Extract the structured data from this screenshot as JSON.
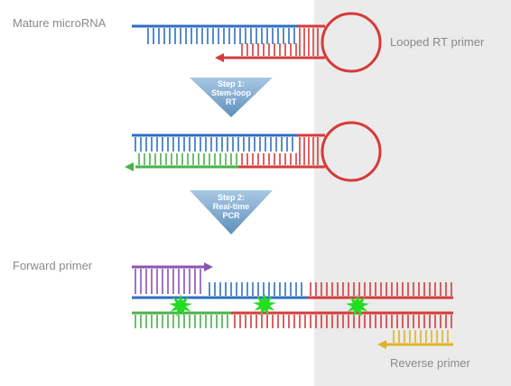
{
  "labels": {
    "mature_microrna": "Mature microRNA",
    "looped_rt_primer": "Looped RT primer",
    "forward_primer": "Forward primer",
    "reverse_primer": "Reverse primer"
  },
  "steps": [
    {
      "lines": [
        "Step 1:",
        "Stem-loop",
        "RT"
      ]
    },
    {
      "lines": [
        "Step 2:",
        "Real-time",
        "PCR"
      ]
    }
  ],
  "colors": {
    "microrna": "#2f6fc2",
    "rt_primer": "#d63a3a",
    "cdna_extension": "#4ab04a",
    "forward_primer": "#8a52b4",
    "reverse_primer": "#e0b228",
    "probe_flash": "#22dd22",
    "step_arrow": "#8fb5d6",
    "background_panel": "#ebebeb"
  }
}
